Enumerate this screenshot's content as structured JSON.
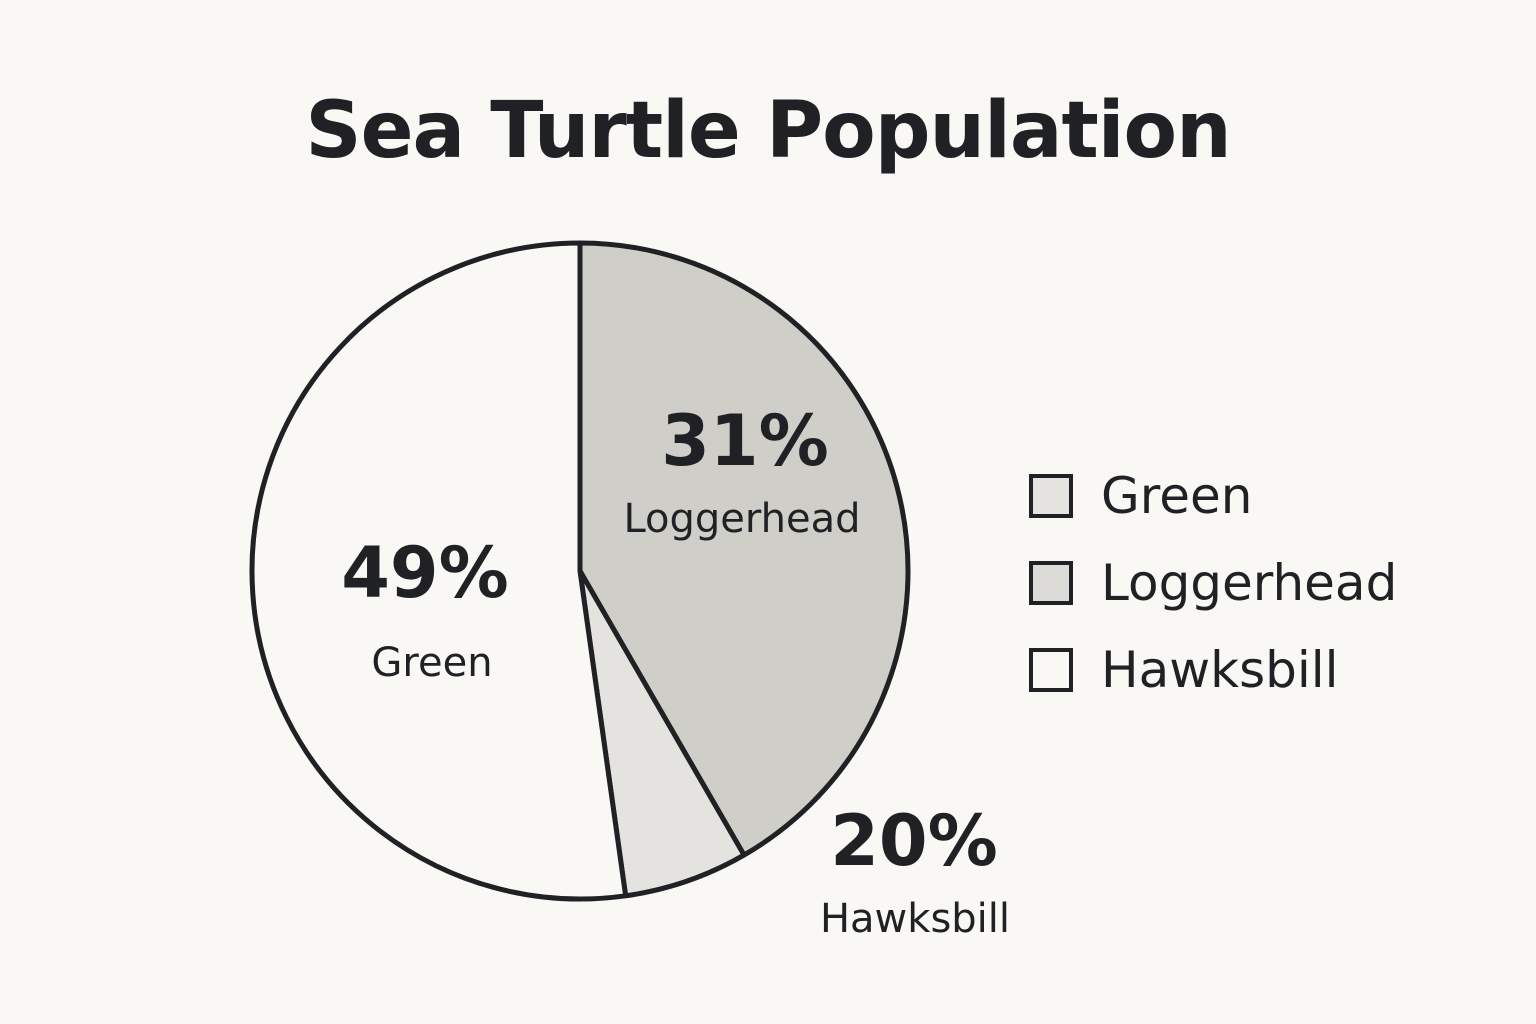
{
  "chart_data": {
    "type": "pie",
    "title": "Sea Turtle Population",
    "categories": [
      "Green",
      "Loggerhead",
      "Hawksbill"
    ],
    "values": [
      49,
      31,
      20
    ],
    "data_labels": [
      "49%",
      "31%",
      "20%"
    ],
    "legend": {
      "placement": "right",
      "entries": [
        "Green",
        "Loggerhead",
        "Hawksbill"
      ]
    },
    "colors": {
      "Green": "#faf8f4",
      "Loggerhead": "#cfcec9",
      "Hawksbill": "#e4e3df",
      "outline": "#1f2124"
    },
    "legend_swatch_colors": [
      "#e4e3df",
      "#dcdbd7",
      "#faf8f4"
    ]
  }
}
